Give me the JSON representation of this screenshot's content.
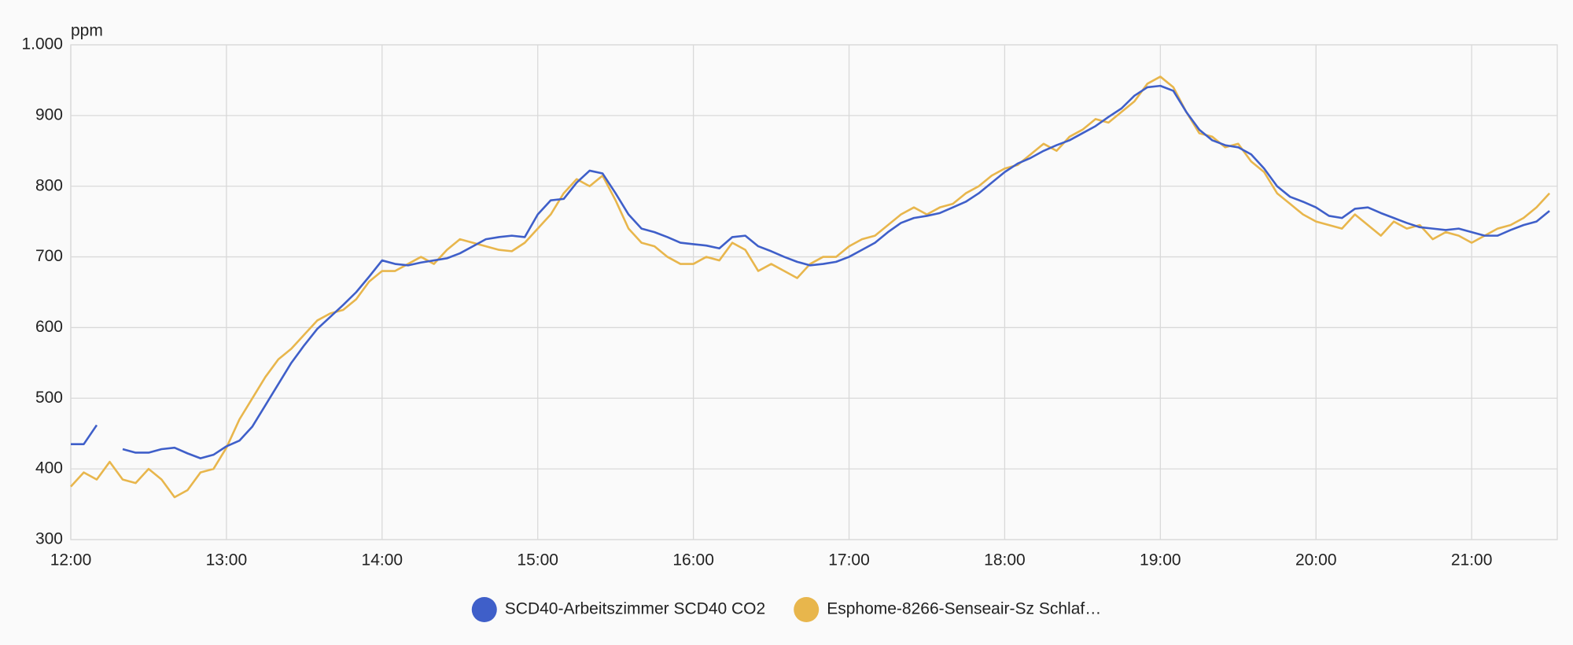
{
  "chart_data": {
    "type": "line",
    "y_unit": "ppm",
    "x": [
      "12:00",
      "12:05",
      "12:10",
      "12:15",
      "12:20",
      "12:25",
      "12:30",
      "12:35",
      "12:40",
      "12:45",
      "12:50",
      "12:55",
      "13:00",
      "13:05",
      "13:10",
      "13:15",
      "13:20",
      "13:25",
      "13:30",
      "13:35",
      "13:40",
      "13:45",
      "13:50",
      "13:55",
      "14:00",
      "14:05",
      "14:10",
      "14:15",
      "14:20",
      "14:25",
      "14:30",
      "14:35",
      "14:40",
      "14:45",
      "14:50",
      "14:55",
      "15:00",
      "15:05",
      "15:10",
      "15:15",
      "15:20",
      "15:25",
      "15:30",
      "15:35",
      "15:40",
      "15:45",
      "15:50",
      "15:55",
      "16:00",
      "16:05",
      "16:10",
      "16:15",
      "16:20",
      "16:25",
      "16:30",
      "16:35",
      "16:40",
      "16:45",
      "16:50",
      "16:55",
      "17:00",
      "17:05",
      "17:10",
      "17:15",
      "17:20",
      "17:25",
      "17:30",
      "17:35",
      "17:40",
      "17:45",
      "17:50",
      "17:55",
      "18:00",
      "18:05",
      "18:10",
      "18:15",
      "18:20",
      "18:25",
      "18:30",
      "18:35",
      "18:40",
      "18:45",
      "18:50",
      "18:55",
      "19:00",
      "19:05",
      "19:10",
      "19:15",
      "19:20",
      "19:25",
      "19:30",
      "19:35",
      "19:40",
      "19:45",
      "19:50",
      "19:55",
      "20:00",
      "20:05",
      "20:10",
      "20:15",
      "20:20",
      "20:25",
      "20:30",
      "20:35",
      "20:40",
      "20:45",
      "20:50",
      "20:55",
      "21:00",
      "21:05",
      "21:10",
      "21:15",
      "21:20",
      "21:25",
      "21:30"
    ],
    "series": [
      {
        "name": "SCD40-Arbeitszimmer SCD40 CO2",
        "color": "#3f5fc9",
        "values": [
          435,
          435,
          462,
          null,
          428,
          423,
          423,
          428,
          430,
          422,
          415,
          420,
          432,
          440,
          460,
          490,
          520,
          550,
          575,
          598,
          615,
          632,
          650,
          672,
          695,
          690,
          688,
          692,
          695,
          698,
          705,
          715,
          725,
          728,
          730,
          728,
          760,
          780,
          782,
          805,
          822,
          818,
          790,
          760,
          740,
          735,
          728,
          720,
          718,
          716,
          712,
          728,
          730,
          715,
          708,
          700,
          693,
          688,
          690,
          693,
          700,
          710,
          720,
          735,
          748,
          755,
          758,
          762,
          770,
          778,
          790,
          805,
          820,
          832,
          840,
          850,
          858,
          865,
          875,
          885,
          898,
          910,
          928,
          940,
          942,
          935,
          905,
          880,
          865,
          858,
          855,
          845,
          825,
          800,
          785,
          778,
          770,
          758,
          755,
          768,
          770,
          762,
          755,
          748,
          742,
          740,
          738,
          740,
          735,
          730,
          730,
          738,
          745,
          750,
          765
        ]
      },
      {
        "name": "Esphome-8266-Senseair-Sz Schlaf…",
        "color": "#e8b64c",
        "values": [
          375,
          395,
          385,
          410,
          385,
          380,
          400,
          385,
          360,
          370,
          395,
          400,
          430,
          470,
          500,
          530,
          555,
          570,
          590,
          610,
          620,
          625,
          640,
          665,
          680,
          680,
          690,
          700,
          690,
          710,
          725,
          720,
          715,
          710,
          708,
          720,
          740,
          760,
          790,
          810,
          800,
          815,
          780,
          740,
          720,
          715,
          700,
          690,
          690,
          700,
          695,
          720,
          710,
          680,
          690,
          680,
          670,
          690,
          700,
          700,
          715,
          725,
          730,
          745,
          760,
          770,
          760,
          770,
          775,
          790,
          800,
          815,
          825,
          830,
          845,
          860,
          850,
          870,
          880,
          895,
          890,
          905,
          920,
          945,
          955,
          940,
          905,
          875,
          870,
          855,
          860,
          835,
          820,
          790,
          775,
          760,
          750,
          745,
          740,
          760,
          745,
          730,
          750,
          740,
          745,
          725,
          735,
          730,
          720,
          730,
          740,
          745,
          755,
          770,
          790
        ]
      }
    ],
    "xlim": [
      "12:00",
      "21:33"
    ],
    "xticks": [
      "12:00",
      "13:00",
      "14:00",
      "15:00",
      "16:00",
      "17:00",
      "18:00",
      "19:00",
      "20:00",
      "21:00"
    ],
    "ylim": [
      300,
      1000
    ],
    "yticks": [
      300,
      400,
      500,
      600,
      700,
      800,
      900,
      {
        "value": 1000,
        "label": "1.000"
      }
    ],
    "grid": true,
    "legend": "bottom"
  }
}
